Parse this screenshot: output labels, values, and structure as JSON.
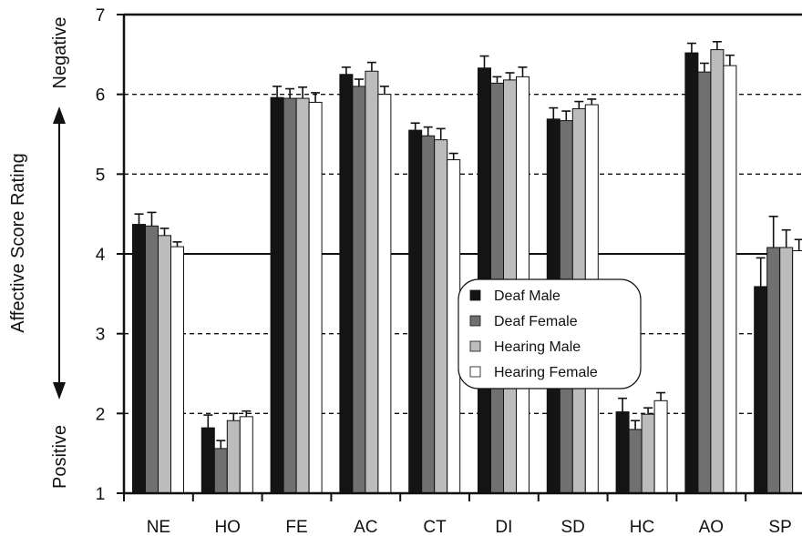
{
  "chart_data": {
    "type": "bar",
    "title": "",
    "ylabel": "Affective Score Rating",
    "ylabel_top": "Negative",
    "ylabel_bottom": "Positive",
    "ylim": [
      1,
      7
    ],
    "yticks": [
      1,
      2,
      3,
      4,
      5,
      6,
      7
    ],
    "grid": "dashed horizontal at 2, 3, 5, 6; solid at 4",
    "categories": [
      "NE",
      "HO",
      "FE",
      "AC",
      "CT",
      "DI",
      "SD",
      "HC",
      "AO",
      "SP"
    ],
    "legend_position": "center-right",
    "series": [
      {
        "name": "Deaf Male",
        "color": "#141414",
        "values": [
          4.37,
          1.82,
          5.96,
          6.25,
          5.55,
          6.33,
          5.69,
          2.02,
          6.52,
          3.59
        ],
        "errors": [
          0.13,
          0.16,
          0.14,
          0.09,
          0.09,
          0.15,
          0.14,
          0.17,
          0.12,
          0.36
        ]
      },
      {
        "name": "Deaf Female",
        "color": "#707070",
        "values": [
          4.35,
          1.56,
          5.95,
          6.1,
          5.48,
          6.14,
          5.67,
          1.8,
          6.28,
          4.08
        ],
        "errors": [
          0.17,
          0.1,
          0.12,
          0.09,
          0.11,
          0.08,
          0.12,
          0.11,
          0.11,
          0.39
        ]
      },
      {
        "name": "Hearing Male",
        "color": "#bcbcbc",
        "values": [
          4.23,
          1.91,
          5.95,
          6.29,
          5.43,
          6.18,
          5.82,
          1.99,
          6.56,
          4.08
        ],
        "errors": [
          0.09,
          0.09,
          0.14,
          0.11,
          0.14,
          0.09,
          0.09,
          0.08,
          0.1,
          0.22
        ]
      },
      {
        "name": "Hearing Female",
        "color": "#ffffff",
        "values": [
          4.09,
          1.96,
          5.9,
          6.0,
          5.18,
          6.22,
          5.87,
          2.16,
          6.36,
          4.04
        ],
        "errors": [
          0.06,
          0.07,
          0.12,
          0.1,
          0.08,
          0.12,
          0.07,
          0.1,
          0.13,
          0.14
        ]
      }
    ]
  }
}
